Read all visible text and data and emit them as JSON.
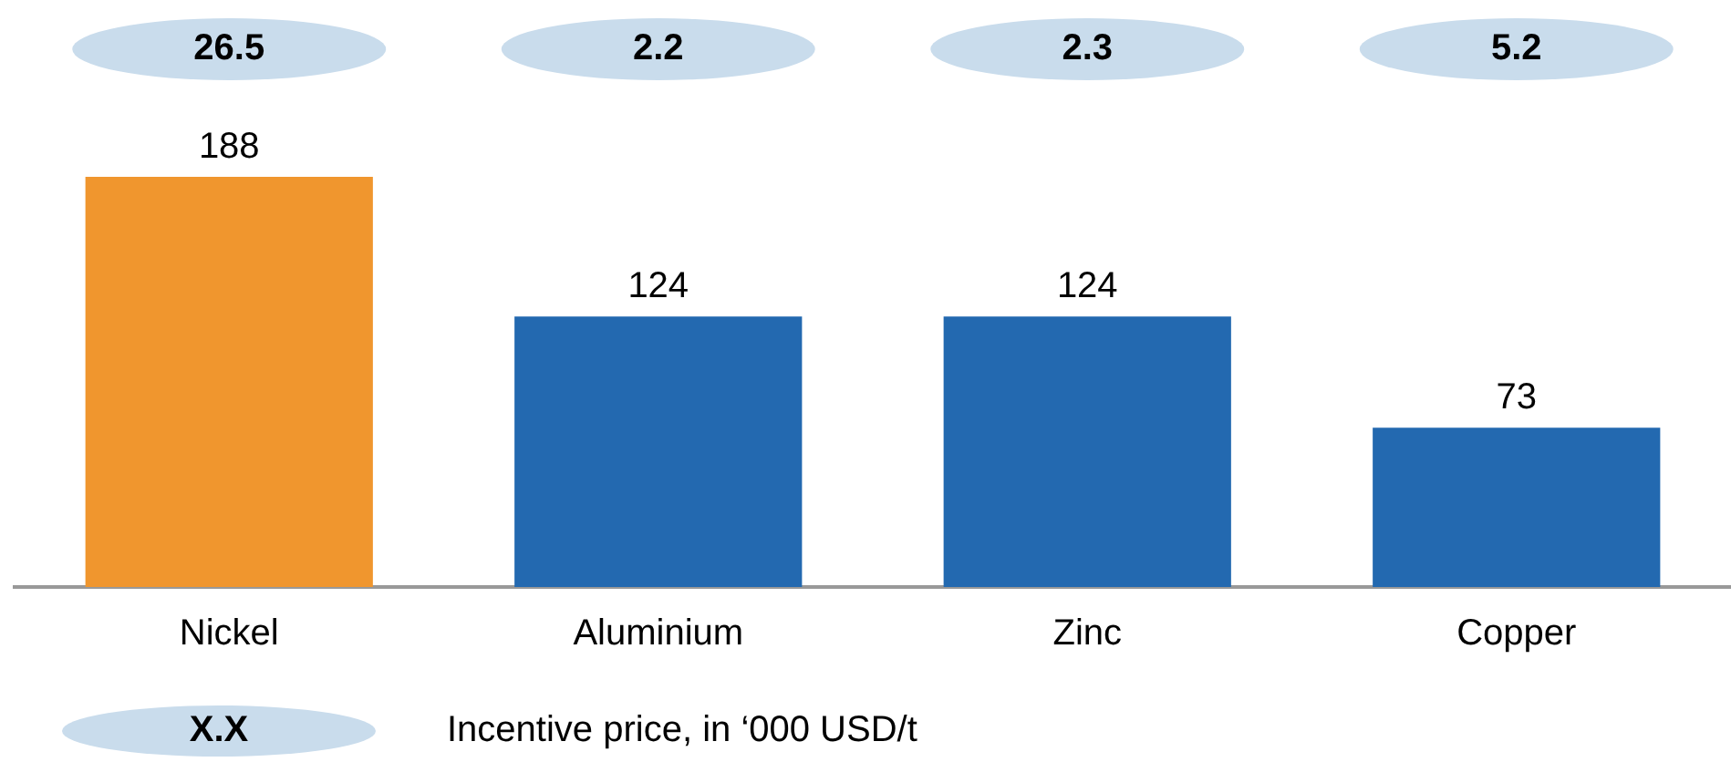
{
  "chart_data": {
    "type": "bar",
    "categories": [
      "Nickel",
      "Aluminium",
      "Zinc",
      "Copper"
    ],
    "values": [
      188,
      124,
      124,
      73
    ],
    "colors": [
      "#f0962e",
      "#2369b0",
      "#2369b0",
      "#2369b0"
    ],
    "data_labels": true,
    "grid": false,
    "legend": false,
    "tick_labels": "x",
    "annotations": [
      "26.5",
      "2.2",
      "2.3",
      "5.2",
      "X.X",
      "Incentive price, in ‘000 USD/t"
    ]
  }
}
